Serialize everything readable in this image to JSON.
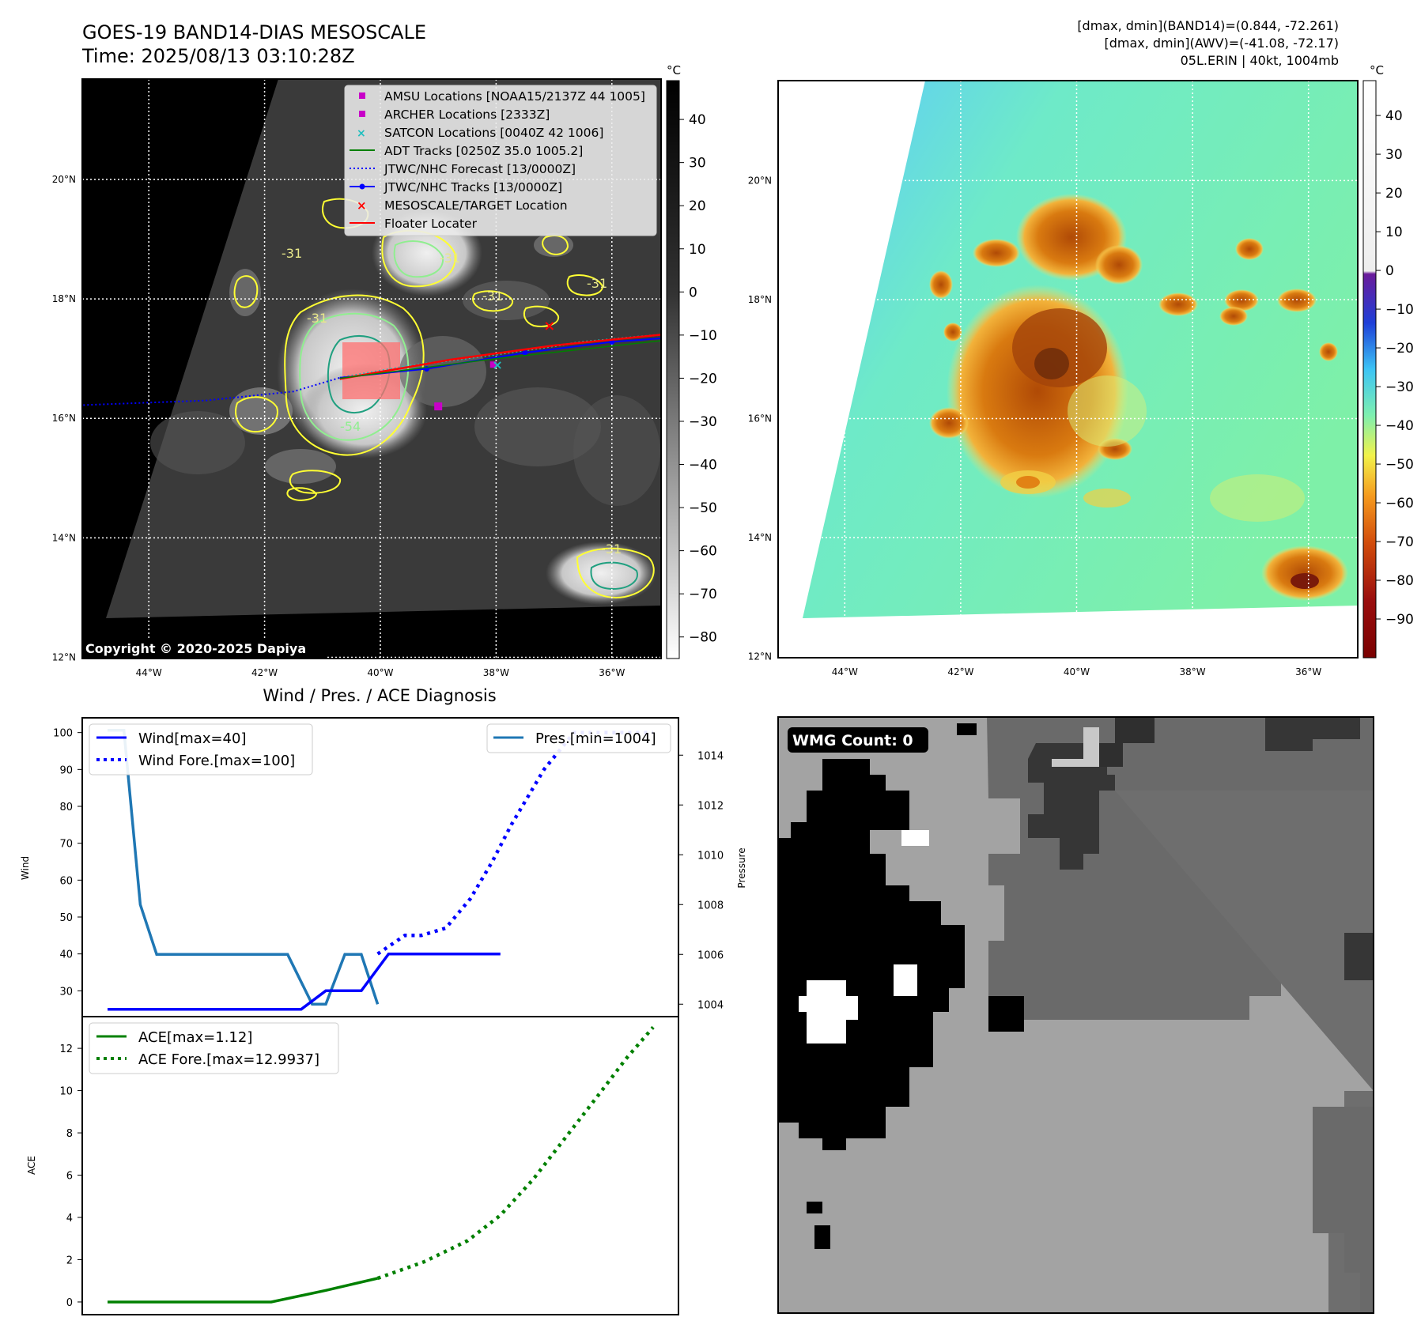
{
  "header": {
    "title": "GOES-19 BAND14-DIAS MESOSCALE",
    "time": "Time: 2025/08/13 03:10:28Z",
    "info_line1": "[dmax, dmin](BAND14)=(0.844, -72.261)",
    "info_line2": "[dmax, dmin](AWV)=(-41.08, -72.17)",
    "info_line3": "05L.ERIN | 40kt, 1004mb"
  },
  "copyright": "Copyright © 2020-2025 Dapiya",
  "map": {
    "lat_labels": [
      "20°N",
      "18°N",
      "16°N",
      "14°N",
      "12°N"
    ],
    "lat_values": [
      20,
      18,
      16,
      14,
      12
    ],
    "lon_labels": [
      "44°W",
      "42°W",
      "40°W",
      "38°W",
      "36°W"
    ],
    "lon_values": [
      -44,
      -42,
      -40,
      -38,
      -36
    ],
    "lon_range": [
      -45.15,
      -35.15
    ],
    "lat_range": [
      11.98,
      21.68
    ]
  },
  "ir_colorbar": {
    "unit": "°C",
    "ticks": [
      "40",
      "30",
      "20",
      "10",
      "0",
      "−10",
      "−20",
      "−30",
      "−40",
      "−50",
      "−60",
      "−70",
      "−80"
    ],
    "tick_values": [
      40,
      30,
      20,
      10,
      0,
      -10,
      -20,
      -30,
      -40,
      -50,
      -60,
      -70,
      -80
    ],
    "range": [
      -85,
      49
    ]
  },
  "wv_colorbar": {
    "unit": "°C",
    "ticks": [
      "40",
      "30",
      "20",
      "10",
      "0",
      "−10",
      "−20",
      "−30",
      "−40",
      "−50",
      "−60",
      "−70",
      "−80",
      "−90"
    ],
    "tick_values": [
      40,
      30,
      20,
      10,
      0,
      -10,
      -20,
      -30,
      -40,
      -50,
      -60,
      -70,
      -80,
      -90
    ],
    "range": [
      -100,
      49
    ]
  },
  "legend": {
    "amsu": "AMSU Locations [NOAA15/2137Z 44 1005]",
    "archer": "ARCHER Locations [2333Z]",
    "satcon": "SATCON Locations [0040Z 42 1006]",
    "adt": "ADT Tracks [0250Z 35.0 1005.2]",
    "forecast": "JTWC/NHC Forecast [13/0000Z]",
    "tracks": "JTWC/NHC Tracks [13/0000Z]",
    "target": "MESOSCALE/TARGET Location",
    "floater": "Floater Locater"
  },
  "contour_labels": [
    "-31",
    "-31",
    "-31",
    "-31",
    "-31",
    "-54",
    "-31"
  ],
  "colors": {
    "amsu": "#c800c8",
    "archer": "#c800c8",
    "satcon": "#1fbfbf",
    "adt": "#008000",
    "jtwc": "#0000ff",
    "target": "#ff0000",
    "floater": "#ff0000",
    "wind": "#0000ff",
    "pressure": "#1f77b4",
    "ace": "#008000"
  },
  "chart_data": [
    {
      "type": "line",
      "title": "Wind / Pres. / ACE Diagnosis",
      "ylabel": "Wind",
      "ylim": [
        23,
        104
      ],
      "yticks": [
        "100",
        "90",
        "80",
        "70",
        "60",
        "50",
        "40",
        "30"
      ],
      "ytick_values": [
        100,
        90,
        80,
        70,
        60,
        50,
        40,
        30
      ],
      "xlim": [
        0,
        100
      ],
      "series": [
        {
          "name": "Wind[max=40]",
          "style": "solid",
          "x": [
            0,
            35.5,
            40,
            46.5,
            51.5,
            56.5,
            63,
            72
          ],
          "values": [
            25,
            25,
            30,
            30,
            40,
            40,
            40,
            40
          ]
        },
        {
          "name": "Wind Fore.[max=100]",
          "style": "dotted",
          "x": [
            49.5,
            54.5,
            57.5,
            62,
            66.5,
            70.5,
            74,
            80,
            85.5,
            90.5,
            95.5,
            100
          ],
          "values": [
            40,
            45,
            45,
            47,
            55,
            65,
            75,
            90,
            100,
            100,
            100,
            100
          ]
        }
      ],
      "secondary_axis": {
        "ylabel": "Pressure",
        "ylim": [
          1003.5,
          1015.5
        ],
        "yticks": [
          "1014",
          "1012",
          "1010",
          "1008",
          "1006",
          "1004"
        ],
        "ytick_values": [
          1014,
          1012,
          1010,
          1008,
          1006,
          1004
        ]
      },
      "secondary_series": [
        {
          "name": "Pres.[min=1004]",
          "style": "solid",
          "x": [
            0,
            3,
            6,
            9,
            14,
            20,
            27,
            33,
            37.5,
            40,
            43.5,
            46.5,
            49.5
          ],
          "values": [
            1015,
            1015,
            1008,
            1006,
            1006,
            1006,
            1006,
            1006,
            1004,
            1004,
            1006,
            1006,
            1004
          ]
        }
      ]
    },
    {
      "type": "line",
      "ylabel": "ACE",
      "ylim": [
        -0.6,
        13.5
      ],
      "yticks": [
        "12",
        "10",
        "8",
        "6",
        "4",
        "2",
        "0"
      ],
      "ytick_values": [
        12,
        10,
        8,
        6,
        4,
        2,
        0
      ],
      "xlim": [
        0,
        100
      ],
      "series": [
        {
          "name": "ACE[max=1.12]",
          "style": "solid",
          "x": [
            0,
            15,
            30,
            40,
            49.5
          ],
          "values": [
            0,
            0,
            0,
            0.55,
            1.12
          ]
        },
        {
          "name": "ACE Fore.[max=12.9937]",
          "style": "dotted",
          "x": [
            49.5,
            58,
            66,
            72,
            78,
            84,
            90,
            95,
            100
          ],
          "values": [
            1.12,
            1.9,
            2.9,
            4.1,
            5.8,
            7.8,
            9.8,
            11.5,
            13.0
          ]
        }
      ]
    }
  ],
  "wmg": {
    "label": "WMG Count: 0"
  }
}
